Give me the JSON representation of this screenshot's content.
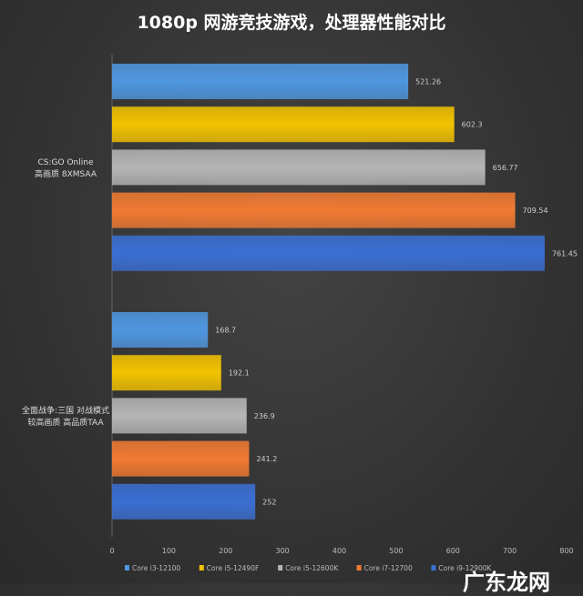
{
  "chart_data": {
    "type": "bar",
    "orientation": "horizontal",
    "title": "1080p 网游竞技游戏，处理器性能对比",
    "categories": [
      [
        "CS:GO Online",
        "高画质 8XMSAA"
      ],
      [
        "全面战争:三国 对战模式",
        "较高画质 高品质TAA"
      ]
    ],
    "series": [
      {
        "name": "Core i3-12100",
        "color": "#4f97e0",
        "values": [
          521.26,
          168.7
        ]
      },
      {
        "name": "Core i5-12490F",
        "color": "#f2c200",
        "values": [
          602.3,
          192.1
        ]
      },
      {
        "name": "Core i5-12600K",
        "color": "#b5b5b5",
        "values": [
          656.77,
          236.9
        ]
      },
      {
        "name": "Core i7-12700",
        "color": "#f07a32",
        "values": [
          709.54,
          241.2
        ]
      },
      {
        "name": "Core i9-12900K",
        "color": "#3b6fd2",
        "values": [
          761.45,
          252
        ]
      }
    ],
    "xlim": [
      0,
      800
    ],
    "xticks": [
      0,
      100,
      200,
      300,
      400,
      500,
      600,
      700,
      800
    ],
    "grid": false,
    "legend": "bottom"
  },
  "watermark": "广东龙网"
}
